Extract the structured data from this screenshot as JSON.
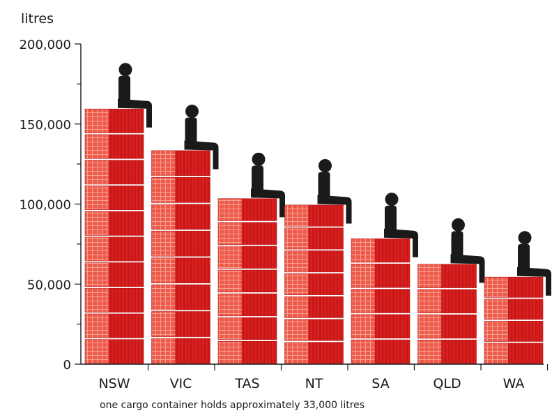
{
  "chart_data": {
    "type": "bar",
    "title": "",
    "xlabel": "",
    "ylabel": "litres",
    "ylim": [
      0,
      200000
    ],
    "yticks": [
      "0",
      "50,000",
      "100,000",
      "150,000",
      "200,000"
    ],
    "categories": [
      "NSW",
      "VIC",
      "TAS",
      "NT",
      "SA",
      "QLD",
      "WA"
    ],
    "values": [
      160000,
      134000,
      104000,
      100000,
      79000,
      63000,
      55000
    ],
    "note": "one cargo container holds approximately 33,000 litres",
    "container_rows_per_bar": [
      10,
      8,
      7,
      7,
      5,
      4,
      4
    ],
    "colors": {
      "container_main": "#d91e1e",
      "container_light": "#ee5a4a",
      "container_stripe": "#b31414",
      "figure": "#1a1a1a",
      "axis": "#1a1a1a"
    }
  }
}
